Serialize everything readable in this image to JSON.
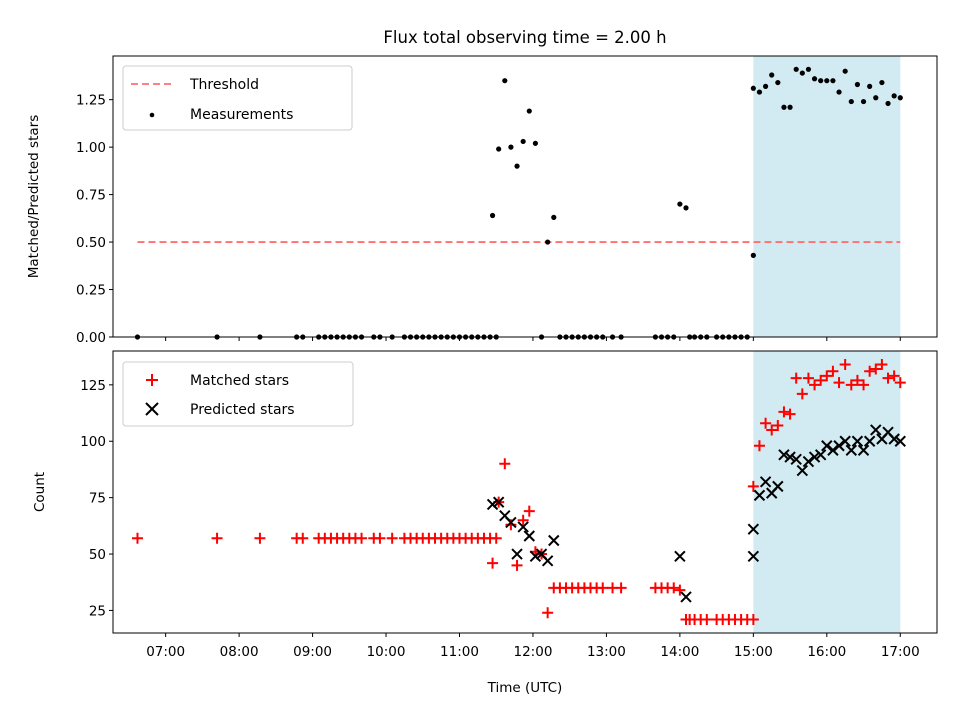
{
  "chart_data": [
    {
      "type": "scatter",
      "title": "Flux total observing time = 2.00 h",
      "ylabel": "Matched/Predicted stars",
      "xlim": [
        "06:17",
        "17:30"
      ],
      "ylim": [
        0,
        1.48
      ],
      "yticks": [
        "0.00",
        "0.25",
        "0.50",
        "0.75",
        "1.00",
        "1.25"
      ],
      "shaded_region": {
        "x0": "15:00",
        "x1": "17:00",
        "color": "#add8e6"
      },
      "legend": {
        "placement": "top-left",
        "entries": [
          "Threshold",
          "Measurements"
        ]
      },
      "threshold": {
        "name": "Threshold",
        "y": 0.5,
        "x0": "06:37",
        "x1": "17:00",
        "color": "#ff7070"
      },
      "series": [
        {
          "name": "Measurements",
          "color": "#000000",
          "x": [
            "06:37",
            "07:42",
            "08:17",
            "08:47",
            "08:52",
            "09:05",
            "09:10",
            "09:15",
            "09:20",
            "09:25",
            "09:30",
            "09:35",
            "09:40",
            "09:50",
            "09:55",
            "10:05",
            "10:15",
            "10:20",
            "10:25",
            "10:30",
            "10:35",
            "10:40",
            "10:45",
            "10:50",
            "10:55",
            "11:00",
            "11:05",
            "11:10",
            "11:15",
            "11:20",
            "11:25",
            "11:30",
            "11:27",
            "11:32",
            "11:37",
            "11:42",
            "11:47",
            "11:52",
            "11:57",
            "12:02",
            "12:07",
            "12:12",
            "12:17",
            "12:22",
            "12:27",
            "12:32",
            "12:37",
            "12:42",
            "12:47",
            "12:52",
            "12:57",
            "13:05",
            "13:12",
            "13:40",
            "13:45",
            "13:50",
            "13:55",
            "14:00",
            "14:05",
            "14:08",
            "14:12",
            "14:17",
            "14:22",
            "14:30",
            "14:35",
            "14:40",
            "14:45",
            "14:50",
            "14:55",
            "15:00",
            "15:00",
            "15:05",
            "15:10",
            "15:15",
            "15:20",
            "15:25",
            "15:30",
            "15:35",
            "15:40",
            "15:45",
            "15:50",
            "15:55",
            "16:00",
            "16:05",
            "16:10",
            "16:15",
            "16:20",
            "16:25",
            "16:30",
            "16:35",
            "16:40",
            "16:45",
            "16:50",
            "16:55",
            "17:00"
          ],
          "y": [
            0,
            0,
            0,
            0,
            0,
            0,
            0,
            0,
            0,
            0,
            0,
            0,
            0,
            0,
            0,
            0,
            0,
            0,
            0,
            0,
            0,
            0,
            0,
            0,
            0,
            0,
            0,
            0,
            0,
            0,
            0,
            0,
            0.64,
            0.99,
            1.35,
            1.0,
            0.9,
            1.03,
            1.19,
            1.02,
            0,
            0.5,
            0.63,
            0,
            0,
            0,
            0,
            0,
            0,
            0,
            0,
            0,
            0,
            0,
            0,
            0,
            0,
            0.7,
            0.68,
            0,
            0,
            0,
            0,
            0,
            0,
            0,
            0,
            0,
            0,
            0.43,
            1.31,
            1.29,
            1.32,
            1.38,
            1.34,
            1.21,
            1.21,
            1.41,
            1.39,
            1.41,
            1.36,
            1.35,
            1.35,
            1.35,
            1.29,
            1.4,
            1.24,
            1.33,
            1.24,
            1.32,
            1.26,
            1.34,
            1.23,
            1.27,
            1.26
          ]
        }
      ]
    },
    {
      "type": "scatter",
      "xlabel": "Time (UTC)",
      "ylabel": "Count",
      "xlim": [
        "06:17",
        "17:30"
      ],
      "ylim": [
        15,
        140
      ],
      "yticks": [
        "25",
        "50",
        "75",
        "100",
        "125"
      ],
      "xticks": [
        "07:00",
        "08:00",
        "09:00",
        "10:00",
        "11:00",
        "12:00",
        "13:00",
        "14:00",
        "15:00",
        "16:00",
        "17:00"
      ],
      "shaded_region": {
        "x0": "15:00",
        "x1": "17:00",
        "color": "#add8e6"
      },
      "legend": {
        "placement": "top-left",
        "entries": [
          "Matched stars",
          "Predicted stars"
        ]
      },
      "series": [
        {
          "name": "Matched stars",
          "color": "#ff0000",
          "marker": "plus",
          "x": [
            "06:37",
            "07:42",
            "08:17",
            "08:47",
            "08:52",
            "09:05",
            "09:10",
            "09:15",
            "09:20",
            "09:25",
            "09:30",
            "09:35",
            "09:40",
            "09:50",
            "09:55",
            "10:05",
            "10:15",
            "10:20",
            "10:25",
            "10:30",
            "10:35",
            "10:40",
            "10:45",
            "10:50",
            "10:55",
            "11:00",
            "11:05",
            "11:10",
            "11:15",
            "11:20",
            "11:25",
            "11:30",
            "11:27",
            "11:32",
            "11:37",
            "11:42",
            "11:47",
            "11:52",
            "11:57",
            "12:02",
            "12:07",
            "12:12",
            "12:17",
            "12:22",
            "12:27",
            "12:32",
            "12:37",
            "12:42",
            "12:47",
            "12:52",
            "12:57",
            "13:05",
            "13:12",
            "13:40",
            "13:45",
            "13:50",
            "13:55",
            "14:00",
            "14:05",
            "14:08",
            "14:12",
            "14:17",
            "14:22",
            "14:30",
            "14:35",
            "14:40",
            "14:45",
            "14:50",
            "14:55",
            "15:00",
            "15:00",
            "15:05",
            "15:10",
            "15:15",
            "15:20",
            "15:25",
            "15:30",
            "15:35",
            "15:40",
            "15:45",
            "15:50",
            "15:55",
            "16:00",
            "16:05",
            "16:10",
            "16:15",
            "16:20",
            "16:25",
            "16:30",
            "16:35",
            "16:40",
            "16:45",
            "16:50",
            "16:55",
            "17:00"
          ],
          "y": [
            57,
            57,
            57,
            57,
            57,
            57,
            57,
            57,
            57,
            57,
            57,
            57,
            57,
            57,
            57,
            57,
            57,
            57,
            57,
            57,
            57,
            57,
            57,
            57,
            57,
            57,
            57,
            57,
            57,
            57,
            57,
            57,
            46,
            73,
            90,
            63,
            45,
            65,
            69,
            51,
            50,
            24,
            35,
            35,
            35,
            35,
            35,
            35,
            35,
            35,
            35,
            35,
            35,
            35,
            35,
            35,
            35,
            34,
            21,
            21,
            21,
            21,
            21,
            21,
            21,
            21,
            21,
            21,
            21,
            21,
            80,
            98,
            108,
            105,
            107,
            113,
            112,
            128,
            121,
            128,
            125,
            127,
            129,
            131,
            126,
            134,
            125,
            127,
            125,
            131,
            132,
            134,
            128,
            129,
            126
          ]
        },
        {
          "name": "Predicted stars",
          "color": "#000000",
          "marker": "x",
          "x": [
            "11:27",
            "11:32",
            "11:37",
            "11:42",
            "11:47",
            "11:52",
            "11:57",
            "12:02",
            "12:07",
            "12:12",
            "12:17",
            "14:00",
            "14:05",
            "15:00",
            "15:00",
            "15:05",
            "15:10",
            "15:15",
            "15:20",
            "15:25",
            "15:30",
            "15:35",
            "15:40",
            "15:45",
            "15:50",
            "15:55",
            "16:00",
            "16:05",
            "16:10",
            "16:15",
            "16:20",
            "16:25",
            "16:30",
            "16:35",
            "16:40",
            "16:45",
            "16:50",
            "16:55",
            "17:00"
          ],
          "y": [
            72,
            73,
            67,
            64,
            50,
            62,
            58,
            49,
            50,
            47,
            56,
            49,
            31,
            49,
            61,
            76,
            82,
            77,
            80,
            94,
            93,
            92,
            87,
            91,
            93,
            94,
            98,
            96,
            98,
            100,
            96,
            100,
            96,
            100,
            105,
            101,
            104,
            101,
            100
          ]
        }
      ]
    }
  ]
}
